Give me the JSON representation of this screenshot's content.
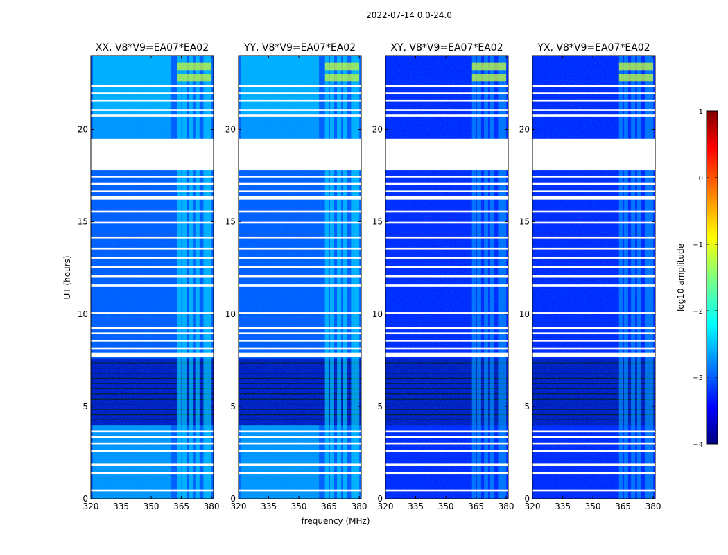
{
  "chart_data": {
    "type": "heatmap",
    "suptitle": "2022-07-14 0.0-24.0",
    "xlabel": "frequency (MHz)",
    "ylabel": "UT (hours)",
    "xlim": [
      320,
      381
    ],
    "ylim": [
      0,
      24
    ],
    "xticks": [
      "320",
      "335",
      "350",
      "365",
      "380"
    ],
    "yticks": [
      "0",
      "5",
      "10",
      "15",
      "20"
    ],
    "panels": [
      {
        "title": "XX, V8*V9=EA07*EA02",
        "background_level": -3.0,
        "band_level": -2.2
      },
      {
        "title": "YY, V8*V9=EA07*EA02",
        "background_level": -3.0,
        "band_level": -2.2
      },
      {
        "title": "XY, V8*V9=EA07*EA02",
        "background_level": -3.3,
        "band_level": -2.6
      },
      {
        "title": "YX, V8*V9=EA07*EA02",
        "background_level": -3.3,
        "band_level": -2.6
      }
    ],
    "rfi_frequency_range_mhz": [
      363,
      380
    ],
    "flagged_gaps_hours": [
      [
        0.4,
        0.5
      ],
      [
        1.35,
        1.45
      ],
      [
        1.8,
        1.9
      ],
      [
        2.55,
        2.65
      ],
      [
        2.95,
        3.05
      ],
      [
        3.3,
        3.4
      ],
      [
        3.6,
        3.7
      ],
      [
        7.7,
        7.9
      ],
      [
        8.1,
        8.2
      ],
      [
        8.5,
        8.6
      ],
      [
        8.9,
        9.0
      ],
      [
        9.2,
        9.3
      ],
      [
        10.0,
        10.1
      ],
      [
        11.5,
        11.6
      ],
      [
        12.0,
        12.1
      ],
      [
        12.5,
        12.6
      ],
      [
        13.0,
        13.1
      ],
      [
        13.5,
        13.6
      ],
      [
        14.1,
        14.2
      ],
      [
        14.9,
        15.0
      ],
      [
        15.5,
        15.6
      ],
      [
        16.2,
        16.4
      ],
      [
        16.6,
        16.7
      ],
      [
        17.0,
        17.1
      ],
      [
        17.4,
        17.5
      ],
      [
        17.8,
        19.5
      ],
      [
        20.7,
        20.8
      ],
      [
        21.0,
        21.1
      ],
      [
        21.5,
        21.6
      ],
      [
        21.9,
        22.0
      ],
      [
        22.3,
        22.4
      ]
    ],
    "dark_region_hours": [
      4.0,
      7.6
    ],
    "colorbar": {
      "label": "log10 amplitude",
      "range": [
        -4,
        1
      ],
      "ticks": [
        "1",
        "0",
        "−1",
        "−2",
        "−3",
        "−4"
      ],
      "cmap": "jet"
    }
  }
}
